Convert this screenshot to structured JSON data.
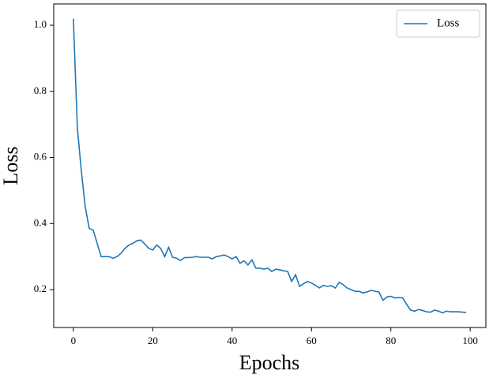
{
  "chart_data": {
    "type": "line",
    "xlabel": "Epochs",
    "ylabel": "Loss",
    "x": [
      0,
      1,
      2,
      3,
      4,
      5,
      6,
      7,
      8,
      9,
      10,
      11,
      12,
      13,
      14,
      15,
      16,
      17,
      18,
      19,
      20,
      21,
      22,
      23,
      24,
      25,
      26,
      27,
      28,
      29,
      30,
      31,
      32,
      33,
      34,
      35,
      36,
      37,
      38,
      39,
      40,
      41,
      42,
      43,
      44,
      45,
      46,
      47,
      48,
      49,
      50,
      51,
      52,
      53,
      54,
      55,
      56,
      57,
      58,
      59,
      60,
      61,
      62,
      63,
      64,
      65,
      66,
      67,
      68,
      69,
      70,
      71,
      72,
      73,
      74,
      75,
      76,
      77,
      78,
      79,
      80,
      81,
      82,
      83,
      84,
      85,
      86,
      87,
      88,
      89,
      90,
      91,
      92,
      93,
      94,
      95,
      96,
      97,
      98,
      99
    ],
    "series": [
      {
        "name": "Loss",
        "color": "#1f77b4",
        "values": [
          1.02,
          0.69,
          0.56,
          0.45,
          0.385,
          0.38,
          0.34,
          0.3,
          0.3,
          0.3,
          0.295,
          0.3,
          0.31,
          0.325,
          0.335,
          0.34,
          0.348,
          0.35,
          0.338,
          0.325,
          0.32,
          0.335,
          0.325,
          0.3,
          0.328,
          0.298,
          0.295,
          0.288,
          0.297,
          0.297,
          0.298,
          0.3,
          0.298,
          0.298,
          0.298,
          0.293,
          0.3,
          0.302,
          0.305,
          0.3,
          0.293,
          0.3,
          0.28,
          0.287,
          0.275,
          0.29,
          0.265,
          0.265,
          0.262,
          0.265,
          0.255,
          0.262,
          0.26,
          0.257,
          0.255,
          0.225,
          0.245,
          0.21,
          0.218,
          0.225,
          0.22,
          0.213,
          0.205,
          0.213,
          0.21,
          0.212,
          0.205,
          0.222,
          0.215,
          0.205,
          0.2,
          0.195,
          0.195,
          0.19,
          0.193,
          0.198,
          0.195,
          0.193,
          0.168,
          0.178,
          0.18,
          0.175,
          0.176,
          0.175,
          0.155,
          0.138,
          0.135,
          0.14,
          0.137,
          0.133,
          0.132,
          0.138,
          0.135,
          0.13,
          0.135,
          0.133,
          0.133,
          0.133,
          0.132,
          0.131
        ]
      }
    ],
    "xlim": [
      -4.95,
      103.95
    ],
    "ylim": [
      0.0855,
      1.0645
    ],
    "xticks": [
      0,
      20,
      40,
      60,
      80,
      100
    ],
    "yticks": [
      0.2,
      0.4,
      0.6,
      0.8,
      {
        "value": 1,
        "label": "1.0"
      }
    ],
    "grid": false,
    "legend": "upper right"
  }
}
